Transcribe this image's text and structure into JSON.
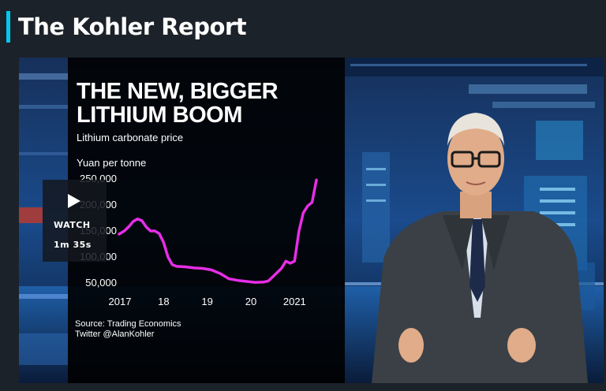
{
  "header": {
    "title": "The Kohler Report"
  },
  "video": {
    "watch_label": "WATCH",
    "duration": "1m 35s"
  },
  "graphic": {
    "headline_line1": "THE NEW, BIGGER",
    "headline_line2": "LITHIUM BOOM",
    "subtitle": "Lithium carbonate price",
    "source_line1": "Source: Trading Economics",
    "source_line2": "Twitter @AlanKohler"
  },
  "chart_data": {
    "type": "line",
    "title": "",
    "ylabel": "Yuan per tonne",
    "y_ticks": [
      "250,000",
      "200,000",
      "150,000",
      "100,000",
      "50,000"
    ],
    "x_ticks": [
      "2017",
      "18",
      "19",
      "20",
      "2021"
    ],
    "ylim": [
      50000,
      250000
    ],
    "series": [
      {
        "color": "#e62ee6",
        "x": [
          2016.98,
          2017.1,
          2017.2,
          2017.3,
          2017.4,
          2017.5,
          2017.6,
          2017.7,
          2017.8,
          2017.9,
          2018.0,
          2018.1,
          2018.2,
          2018.3,
          2018.5,
          2018.7,
          2018.9,
          2019.1,
          2019.3,
          2019.5,
          2019.7,
          2019.9,
          2020.1,
          2020.3,
          2020.4,
          2020.5,
          2020.6,
          2020.7,
          2020.8,
          2020.9,
          2021.0,
          2021.1,
          2021.2,
          2021.3,
          2021.4,
          2021.5
        ],
        "y": [
          144000,
          150000,
          158000,
          168000,
          173000,
          170000,
          158000,
          150000,
          150000,
          145000,
          128000,
          100000,
          85000,
          82000,
          81000,
          79000,
          78000,
          75000,
          68000,
          58000,
          55000,
          53000,
          51000,
          52000,
          54000,
          62000,
          70000,
          78000,
          92000,
          88000,
          92000,
          150000,
          185000,
          198000,
          205000,
          248000
        ]
      }
    ]
  }
}
